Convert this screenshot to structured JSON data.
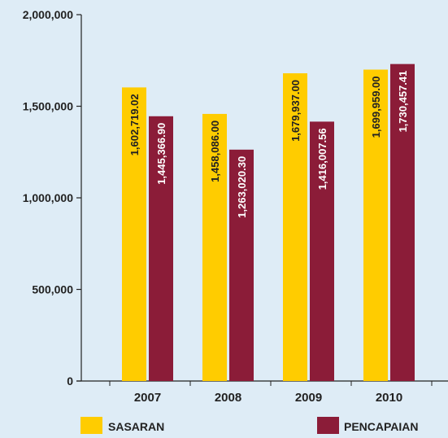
{
  "chart_data": {
    "type": "bar",
    "categories": [
      "2007",
      "2008",
      "2009",
      "2010"
    ],
    "series": [
      {
        "name": "SASARAN",
        "color": "#ffcc00",
        "values": [
          1602719.02,
          1458086.0,
          1679937.0,
          1699959.0
        ],
        "labels": [
          "1,602,719.02",
          "1,458,086.00",
          "1,679,937.00",
          "1,699,959.00"
        ]
      },
      {
        "name": "PENCAPAIAN",
        "color": "#8b1c38",
        "values": [
          1445366.9,
          1263020.3,
          1416007.56,
          1730457.41
        ],
        "labels": [
          "1,445,366.90",
          "1,263,020.30",
          "1,416,007.56",
          "1,730,457.41"
        ]
      }
    ],
    "y_ticks": [
      {
        "value": 0,
        "label": "0"
      },
      {
        "value": 500000,
        "label": "500,000"
      },
      {
        "value": 1000000,
        "label": "1,000,000"
      },
      {
        "value": 1500000,
        "label": "1,500,000"
      },
      {
        "value": 2000000,
        "label": "2,000,000"
      }
    ],
    "ylim": [
      0,
      2000000
    ],
    "grid": false,
    "legend_position": "bottom",
    "background_color": "#deecf6",
    "axis_color": "#222222"
  }
}
